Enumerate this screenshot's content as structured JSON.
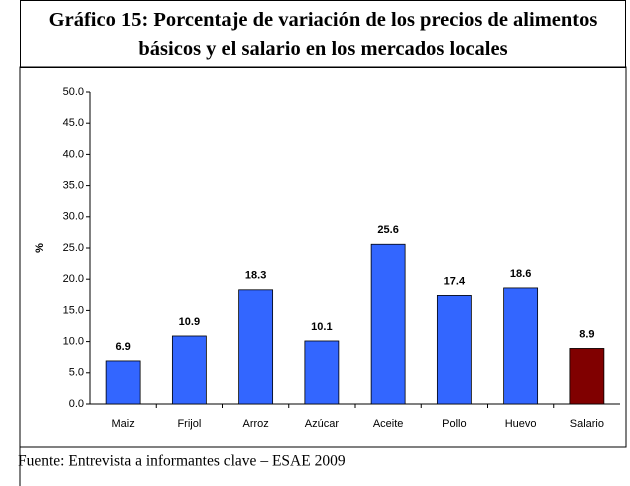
{
  "chart_data": {
    "type": "bar",
    "title": "Gráfico 15: Porcentaje de variación de los precios de alimentos básicos y el salario en los mercados locales",
    "y_label": "%",
    "categories": [
      "Maiz",
      "Frijol",
      "Arroz",
      "Azúcar",
      "Aceite",
      "Pollo",
      "Huevo",
      "Salario"
    ],
    "values": [
      6.9,
      10.9,
      18.3,
      10.1,
      25.6,
      17.4,
      18.6,
      8.9
    ],
    "colors": [
      "#3366ff",
      "#3366ff",
      "#3366ff",
      "#3366ff",
      "#3366ff",
      "#3366ff",
      "#3366ff",
      "#800000"
    ],
    "ylim": [
      0,
      50
    ],
    "yticks": [
      {
        "value": 0,
        "label": "0.0"
      },
      {
        "value": 5,
        "label": "5.0"
      },
      {
        "value": 10,
        "label": "10.0"
      },
      {
        "value": 15,
        "label": "15.0"
      },
      {
        "value": 20,
        "label": "20.0"
      },
      {
        "value": 25,
        "label": "25.0"
      },
      {
        "value": 30,
        "label": "30.0"
      },
      {
        "value": 35,
        "label": "35.0"
      },
      {
        "value": 40,
        "label": "40.0"
      },
      {
        "value": 45,
        "label": "45.0"
      },
      {
        "value": 50,
        "label": "50.0"
      }
    ],
    "grid": false,
    "source": "Fuente: Entrevista a informantes clave – ESAE 2009"
  }
}
